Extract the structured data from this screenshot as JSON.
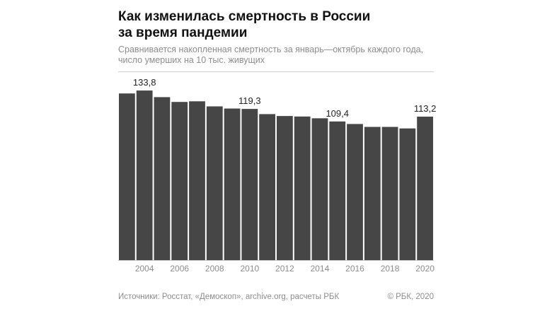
{
  "header": {
    "title_line1": "Как изменилась смертность в России",
    "title_line2": "за время пандемии",
    "subtitle_line1": "Сравнивается накопленная смертность за январь—октябрь каждого года,",
    "subtitle_line2": "число умерших на 10 тыс. живущих"
  },
  "footer": {
    "sources": "Источники: Росстат, «Демоскоп», archive.org, расчеты РБК",
    "copyright": "© РБК, 2020"
  },
  "colors": {
    "bar": "#464646",
    "baseline": "#c8c8c8",
    "tick_label": "#8c8c8c",
    "value_label": "#222222"
  },
  "chart_data": {
    "type": "bar",
    "categories": [
      "2003",
      "2004",
      "2005",
      "2006",
      "2007",
      "2008",
      "2009",
      "2010",
      "2011",
      "2012",
      "2013",
      "2014",
      "2015",
      "2016",
      "2017",
      "2018",
      "2019",
      "2020"
    ],
    "values": [
      131.5,
      133.8,
      128.6,
      124.8,
      125.3,
      121.3,
      119.6,
      119.3,
      115.2,
      113.7,
      113.3,
      111.9,
      109.4,
      107.4,
      105.1,
      105.1,
      103.9,
      113.2
    ],
    "x_tick_labels": [
      "2004",
      "2006",
      "2008",
      "2010",
      "2012",
      "2014",
      "2016",
      "2018",
      "2020"
    ],
    "data_labels": [
      {
        "category": "2004",
        "text": "133,8"
      },
      {
        "category": "2010",
        "text": "119,3"
      },
      {
        "category": "2015",
        "text": "109,4"
      },
      {
        "category": "2020",
        "text": "113,2"
      }
    ],
    "ylim": [
      0,
      145
    ],
    "grid": false
  }
}
